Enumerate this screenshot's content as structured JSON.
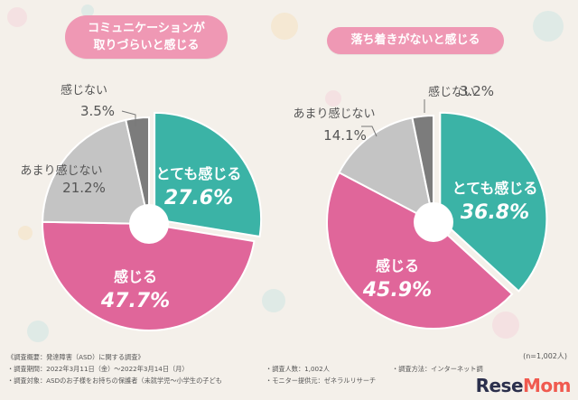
{
  "charts_titles": {
    "left_line1": "コミュニケーションが",
    "left_line2": "取りづらいと感じる",
    "right": "落ち着きがないと感じる"
  },
  "chart_data": [
    {
      "type": "pie",
      "title": "コミュニケーションが取りづらいと感じる",
      "categories": [
        "とても感じる",
        "感じる",
        "あまり感じない",
        "感じない"
      ],
      "values": [
        27.6,
        47.7,
        21.2,
        3.5
      ],
      "value_labels": [
        "27.6%",
        "47.7%",
        "21.2%",
        "3.5%"
      ],
      "colors": [
        "#3bb3a6",
        "#e0669a",
        "#c4c4c4",
        "#7c7c7c"
      ]
    },
    {
      "type": "pie",
      "title": "落ち着きがないと感じる",
      "categories": [
        "とても感じる",
        "感じる",
        "あまり感じない",
        "感じない"
      ],
      "values": [
        36.8,
        45.9,
        14.1,
        3.2
      ],
      "value_labels": [
        "36.8%",
        "45.9%",
        "14.1%",
        "3.2%"
      ],
      "colors": [
        "#3bb3a6",
        "#e0669a",
        "#c4c4c4",
        "#7c7c7c"
      ]
    }
  ],
  "n_note": "(n=1,002人)",
  "footer": {
    "line1": "《調査概要：発達障害（ASD）に関する調査》",
    "line2": "・調査期間：2022年3月11日（金）〜2022年3月14日（月）",
    "line3": "・調査対象：ASDのお子様をお持ちの保護者（未就学児〜小学生の子ども",
    "count": "・調査人数：1,002人",
    "provider": "・モニター提供元：ゼネラルリサーチ",
    "method": "・調査方法：インターネット調"
  },
  "logo": {
    "part1": "Rese",
    "part2": "Mom"
  }
}
